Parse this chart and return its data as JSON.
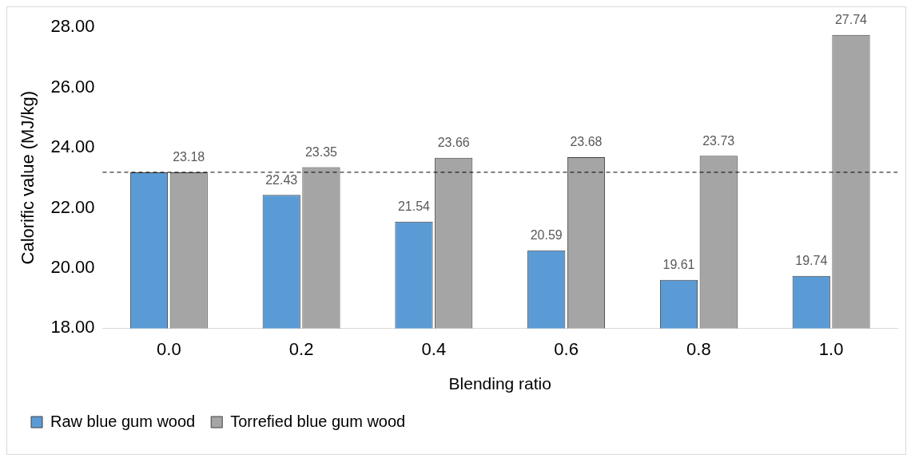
{
  "chart_data": {
    "type": "bar",
    "xlabel": "Blending ratio",
    "ylabel": "Calorific value (MJ/kg)",
    "categories": [
      "0.0",
      "0.2",
      "0.4",
      "0.6",
      "0.8",
      "1.0"
    ],
    "series": [
      {
        "name": "Raw blue gum wood",
        "color": "#5b9bd5",
        "values": [
          23.18,
          22.43,
          21.54,
          20.59,
          19.61,
          19.74
        ],
        "value_labels": [
          null,
          "22.43",
          "21.54",
          "20.59",
          "19.61",
          "19.74"
        ]
      },
      {
        "name": "Torrefied blue gum wood",
        "color": "#a5a5a5",
        "values": [
          23.18,
          23.35,
          23.66,
          23.68,
          23.73,
          27.74
        ],
        "value_labels": [
          "23.18",
          "23.35",
          "23.66",
          "23.68",
          "23.73",
          "27.74"
        ]
      }
    ],
    "ylim": [
      18,
      28
    ],
    "yticks": [
      {
        "value": 18,
        "label": "18.00"
      },
      {
        "value": 20,
        "label": "20.00"
      },
      {
        "value": 22,
        "label": "22.00"
      },
      {
        "value": 24,
        "label": "24.00"
      },
      {
        "value": 26,
        "label": "26.00"
      },
      {
        "value": 28,
        "label": "28.00"
      }
    ],
    "ref_lines": [
      {
        "axis": "y",
        "value": 23.18,
        "color": "#000000",
        "line_style": "dashed"
      }
    ],
    "grid": false,
    "legend": "bottom"
  }
}
